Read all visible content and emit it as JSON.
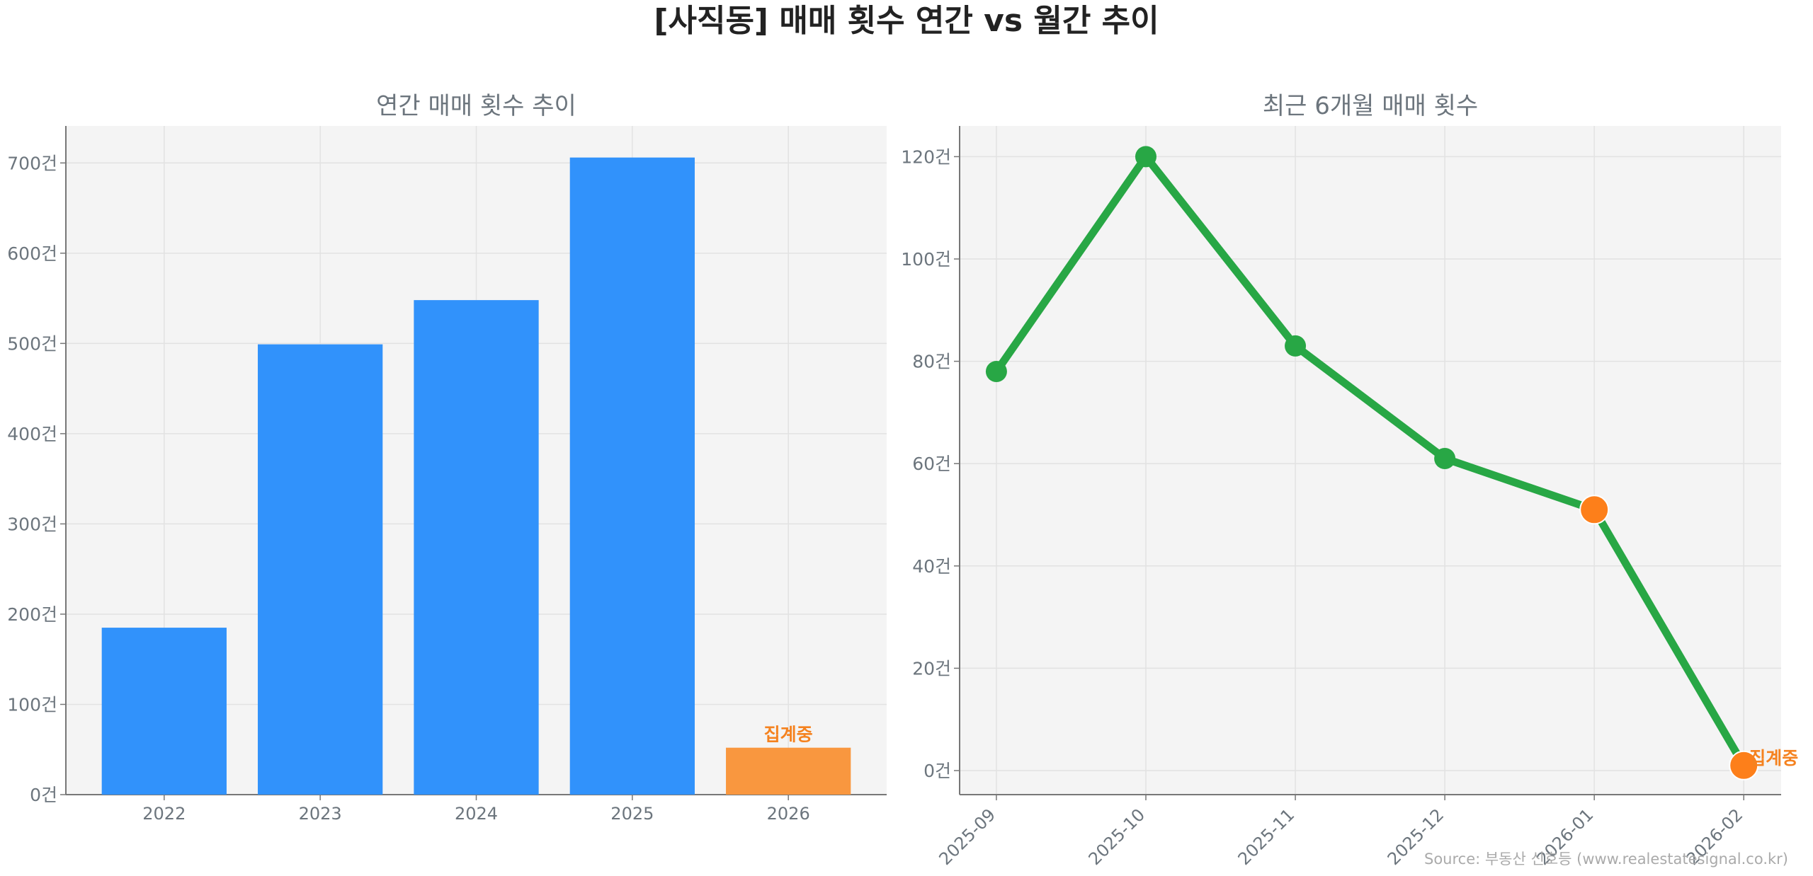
{
  "title": "[사직동] 매매 횟수 연간 vs 월간 추이",
  "source": "Source: 부동산 신호등 (www.realestatesignal.co.kr)",
  "chart_data": [
    {
      "type": "bar",
      "title": "연간 매매 횟수 추이",
      "categories": [
        "2022",
        "2023",
        "2024",
        "2025",
        "2026"
      ],
      "values": [
        185,
        499,
        548,
        706,
        52
      ],
      "bar_colors": [
        "#3192fb",
        "#3192fb",
        "#3192fb",
        "#3192fb",
        "#f9973f"
      ],
      "annotations": [
        {
          "category": "2026",
          "text": "집계중",
          "color": "#f5821f"
        }
      ],
      "yticks": [
        0,
        100,
        200,
        300,
        400,
        500,
        600,
        700
      ],
      "ytick_suffix": "건",
      "ylim": [
        0,
        741
      ],
      "grid": true,
      "xlabel": "",
      "ylabel": ""
    },
    {
      "type": "line",
      "title": "최근 6개월 매매 횟수",
      "categories": [
        "2025-09",
        "2025-10",
        "2025-11",
        "2025-12",
        "2026-01",
        "2026-02"
      ],
      "values": [
        78,
        120,
        83,
        61,
        51,
        1
      ],
      "line_color": "#28a745",
      "highlight_color": "#fd7f1a",
      "highlighted": [
        "2026-01",
        "2026-02"
      ],
      "annotations": [
        {
          "category": "2026-02",
          "text": "집계중",
          "color": "#f5821f"
        }
      ],
      "yticks": [
        0,
        20,
        40,
        60,
        80,
        100,
        120
      ],
      "ytick_suffix": "건",
      "ylim": [
        -4.7,
        126
      ],
      "grid": true,
      "xlabel": "",
      "ylabel": ""
    }
  ]
}
